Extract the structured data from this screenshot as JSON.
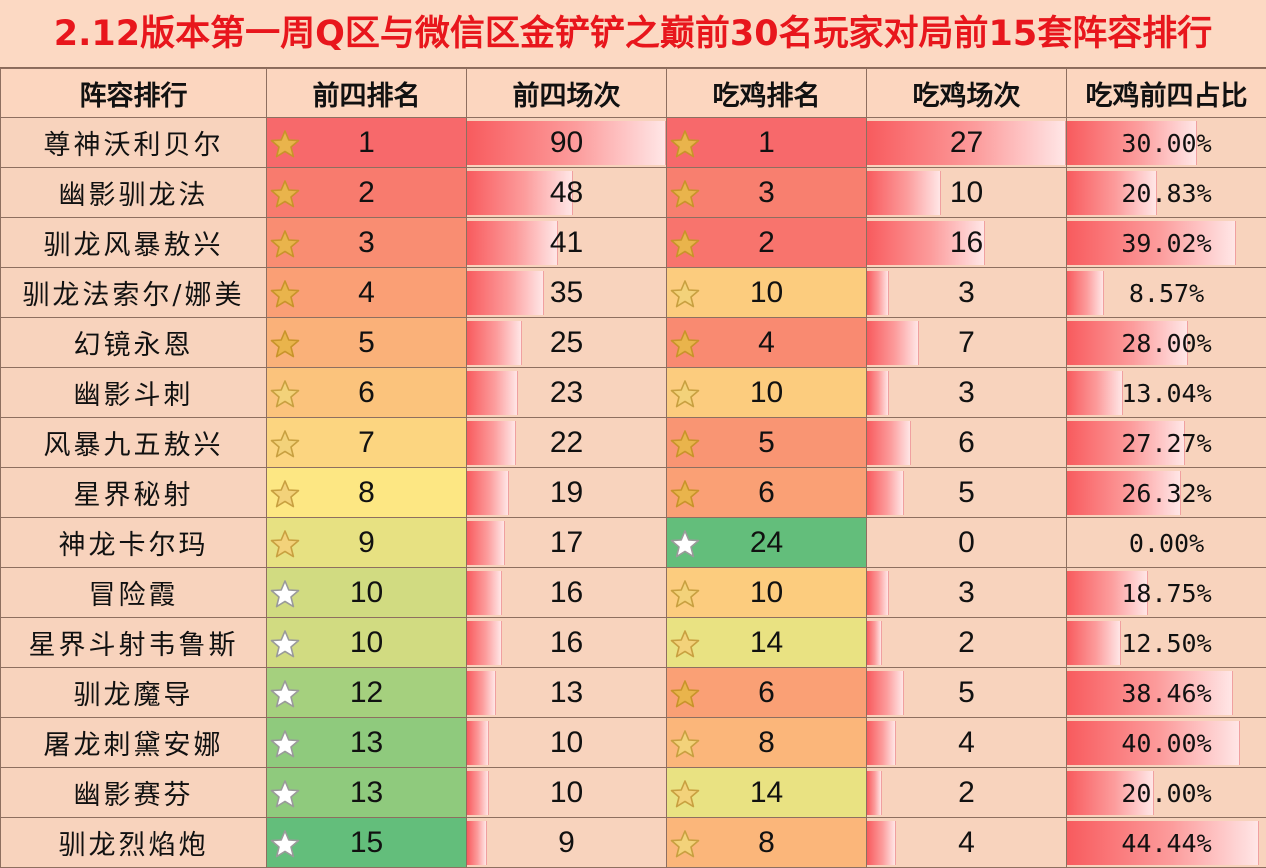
{
  "title": "2.12版本第一周Q区与微信区金铲铲之巅前30名玩家对局前15套阵容排行",
  "headers": [
    "阵容排行",
    "前四排名",
    "前四场次",
    "吃鸡排名",
    "吃鸡场次",
    "吃鸡前四占比"
  ],
  "colors": {
    "title_red": "#e8161c",
    "scale_high": "#f7696b",
    "scale_mid": "#fde783",
    "scale_low": "#63be7b",
    "bar": "#f85b5e"
  },
  "icons": {
    "rank_marker": "star-icon"
  },
  "rows": [
    {
      "name": "尊神沃利贝尔",
      "top4_rank": "1",
      "top4_games": "90",
      "win_rank": "1",
      "win_games": "27",
      "win_ratio": "30.00%"
    },
    {
      "name": "幽影驯龙法",
      "top4_rank": "2",
      "top4_games": "48",
      "win_rank": "3",
      "win_games": "10",
      "win_ratio": "20.83%"
    },
    {
      "name": "驯龙风暴敖兴",
      "top4_rank": "3",
      "top4_games": "41",
      "win_rank": "2",
      "win_games": "16",
      "win_ratio": "39.02%"
    },
    {
      "name": "驯龙法索尔/娜美",
      "top4_rank": "4",
      "top4_games": "35",
      "win_rank": "10",
      "win_games": "3",
      "win_ratio": "8.57%"
    },
    {
      "name": "幻镜永恩",
      "top4_rank": "5",
      "top4_games": "25",
      "win_rank": "4",
      "win_games": "7",
      "win_ratio": "28.00%"
    },
    {
      "name": "幽影斗刺",
      "top4_rank": "6",
      "top4_games": "23",
      "win_rank": "10",
      "win_games": "3",
      "win_ratio": "13.04%"
    },
    {
      "name": "风暴九五敖兴",
      "top4_rank": "7",
      "top4_games": "22",
      "win_rank": "5",
      "win_games": "6",
      "win_ratio": "27.27%"
    },
    {
      "name": "星界秘射",
      "top4_rank": "8",
      "top4_games": "19",
      "win_rank": "6",
      "win_games": "5",
      "win_ratio": "26.32%"
    },
    {
      "name": "神龙卡尔玛",
      "top4_rank": "9",
      "top4_games": "17",
      "win_rank": "24",
      "win_games": "0",
      "win_ratio": "0.00%"
    },
    {
      "name": "冒险霞",
      "top4_rank": "10",
      "top4_games": "16",
      "win_rank": "10",
      "win_games": "3",
      "win_ratio": "18.75%"
    },
    {
      "name": "星界斗射韦鲁斯",
      "top4_rank": "10",
      "top4_games": "16",
      "win_rank": "14",
      "win_games": "2",
      "win_ratio": "12.50%"
    },
    {
      "name": "驯龙魔导",
      "top4_rank": "12",
      "top4_games": "13",
      "win_rank": "6",
      "win_games": "5",
      "win_ratio": "38.46%"
    },
    {
      "name": "屠龙刺黛安娜",
      "top4_rank": "13",
      "top4_games": "10",
      "win_rank": "8",
      "win_games": "4",
      "win_ratio": "40.00%"
    },
    {
      "name": "幽影赛芬",
      "top4_rank": "13",
      "top4_games": "10",
      "win_rank": "14",
      "win_games": "2",
      "win_ratio": "20.00%"
    },
    {
      "name": "驯龙烈焰炮",
      "top4_rank": "15",
      "top4_games": "9",
      "win_rank": "8",
      "win_games": "4",
      "win_ratio": "44.44%"
    }
  ]
}
